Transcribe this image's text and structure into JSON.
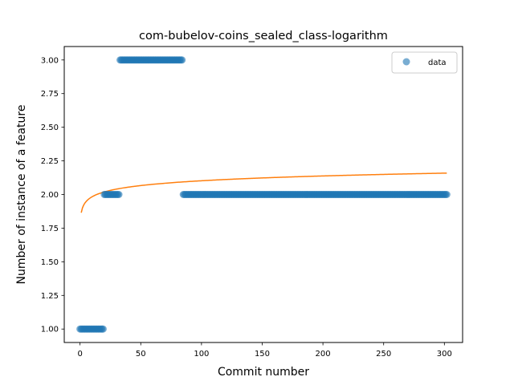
{
  "chart_data": {
    "type": "scatter",
    "title": "com-bubelov-coins_sealed_class-logarithm",
    "xlabel": "Commit number",
    "ylabel": "Number of instance of a feature",
    "xlim": [
      -13,
      315
    ],
    "ylim": [
      0.9,
      3.1
    ],
    "xticks": [
      0,
      50,
      100,
      150,
      200,
      250,
      300
    ],
    "xtick_labels": [
      "0",
      "50",
      "100",
      "150",
      "200",
      "250",
      "300"
    ],
    "yticks": [
      1.0,
      1.25,
      1.5,
      1.75,
      2.0,
      2.25,
      2.5,
      2.75,
      3.0
    ],
    "ytick_labels": [
      "1.00",
      "1.25",
      "1.50",
      "1.75",
      "2.00",
      "2.25",
      "2.50",
      "2.75",
      "3.00"
    ],
    "grid": false,
    "legend_position": "top-right",
    "series": [
      {
        "name": "data",
        "kind": "scatter",
        "color": "#1f77b4",
        "segments": [
          {
            "x_start": 0,
            "x_end": 19,
            "y": 1
          },
          {
            "x_start": 20,
            "x_end": 32,
            "y": 2
          },
          {
            "x_start": 33,
            "x_end": 84,
            "y": 3
          },
          {
            "x_start": 85,
            "x_end": 302,
            "y": 2
          }
        ]
      },
      {
        "kind": "line",
        "color": "#ff7f0e",
        "function": "logarithmic",
        "a": 1.865,
        "b": 0.0515,
        "x_range": [
          1,
          302
        ]
      }
    ]
  }
}
